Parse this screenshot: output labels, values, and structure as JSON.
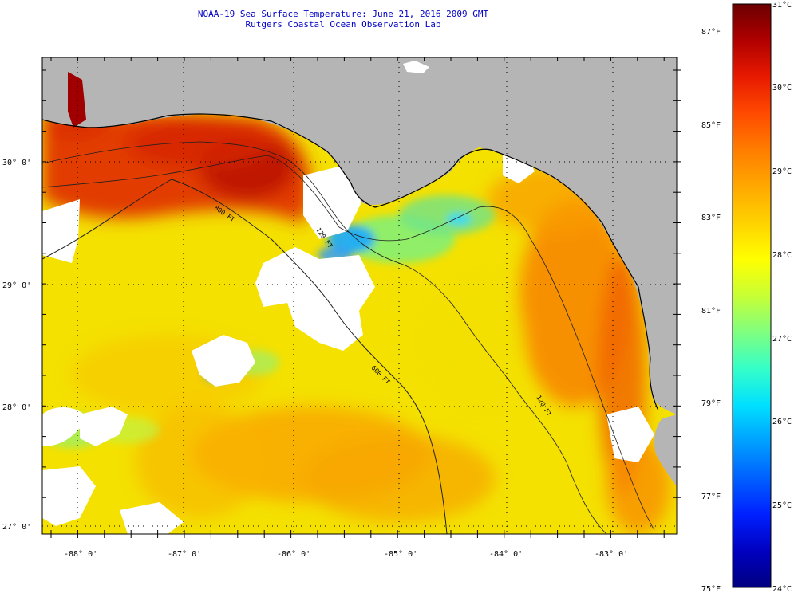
{
  "header": {
    "title": "NOAA-19 Sea Surface Temperature:  June 21, 2016 2009 GMT",
    "subtitle": "Rutgers Coastal Ocean Observation Lab"
  },
  "map": {
    "longitude_labels": [
      "-88° 0'",
      "-87° 0'",
      "-86° 0'",
      "-85° 0'",
      "-84° 0'",
      "-83° 0'"
    ],
    "latitude_labels": [
      "30° 0'",
      "29° 0'",
      "28° 0'",
      "27° 0'"
    ],
    "isobath_labels": [
      "800 FT",
      "120 FT",
      "600 FT",
      "120 FT"
    ],
    "colors": {
      "land": "#b5b5b5",
      "cloud": "#ffffff",
      "gridline": "#000000"
    }
  },
  "colorbar": {
    "celsius_labels": [
      "31°C",
      "30°C",
      "29°C",
      "28°C",
      "27°C",
      "26°C",
      "25°C",
      "24°C"
    ],
    "fahrenheit_labels": [
      "87°F",
      "85°F",
      "83°F",
      "81°F",
      "79°F",
      "77°F",
      "75°F"
    ],
    "gradient": [
      "#6b0000",
      "#b00000",
      "#e81a00",
      "#ff4a00",
      "#ff7d00",
      "#ffa800",
      "#ffd200",
      "#ffff00",
      "#c8ff35",
      "#7fff7f",
      "#35ffc8",
      "#00e0ff",
      "#00a0ff",
      "#0060ff",
      "#0020ff",
      "#0000c0",
      "#000080"
    ]
  }
}
